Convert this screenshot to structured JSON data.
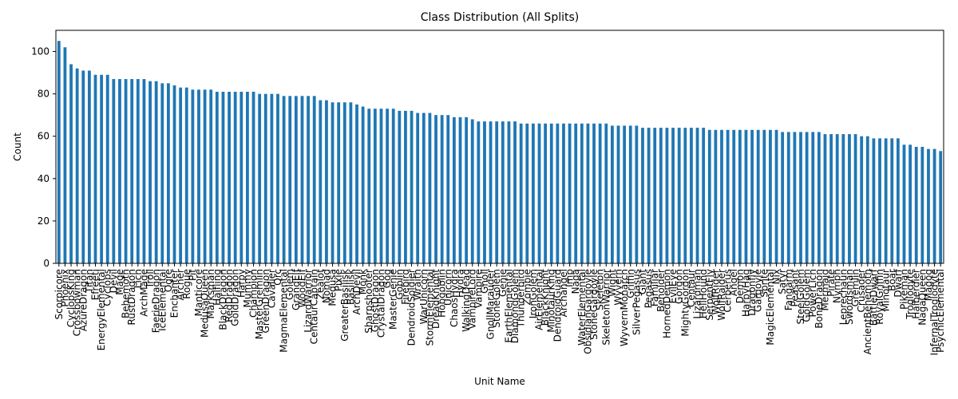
{
  "chart_data": {
    "type": "bar",
    "title": "Class Distribution (All Splits)",
    "x_label": "Unit Name",
    "y_label": "Count",
    "color": "#1f77b4",
    "categories": [
      "Scorpicore",
      "Phoenix",
      "CyclopsKing",
      "Crossbowman",
      "AzureDragon",
      "Titan",
      "Efreeti",
      "EnergyElemental",
      "Cyclops",
      "Devil",
      "Mage",
      "Behemoth",
      "RustDragon",
      "Lich",
      "ArchMage",
      "Troll",
      "FaerieDragon",
      "IceElemental",
      "Ogre",
      "Enchanter",
      "Archer",
      "Rogue",
      "Pit",
      "Manticore",
      "MedusaQueen",
      "Marksman",
      "Halfling",
      "BlackDragon",
      "RedDragon",
      "GoldDragon",
      "Harpy",
      "Mummy",
      "Champion",
      "MasterGremlin",
      "GreenDragon",
      "Cavalier",
      "Orc",
      "MagmaElemental",
      "Golem",
      "GrandElf",
      "WoodElf",
      "LizardWarrior",
      "CentaurCaptain",
      "Zealot",
      "Nomad",
      "Medusa",
      "Pixie",
      "GreaterBasilisk",
      "Basilisk",
      "ArchDevil",
      "Monk",
      "Sharpshooter",
      "GhostDragon",
      "CrystalDragon",
      "Gog",
      "MasterGenie",
      "Goblin",
      "Firebird",
      "DendroidSoldier",
      "Wraith",
      "WarUnicorn",
      "StormElemental",
      "DreadKnight",
      "Hobgoblin",
      "Unicorn",
      "ChaosHydra",
      "Hydra",
      "WalkingDead",
      "VampireLord",
      "Vampire",
      "Gnoll",
      "GnollMarauder",
      "StoneGolem",
      "Genie",
      "EarthElemental",
      "DiamondGolem",
      "Thunderbird",
      "Zombie",
      "IronGolem",
      "AirElemental",
      "BlackKnight",
      "MinotaurKing",
      "DendroidGuard",
      "Archangel",
      "Imp",
      "Naga",
      "WaterElemental",
      "ObsidianGargoyle",
      "StoneGargoyle",
      "Skeleton",
      "SkeletonWarrior",
      "Wight",
      "Wyvern",
      "WyvernMonarch",
      "Griffin",
      "SilverPegasus",
      "Giant",
      "Pegasus",
      "Familiar",
      "Beholder",
      "HornedDemon",
      "EvilEye",
      "Gorgon",
      "MightyGorgon",
      "Centaur",
      "Lizardman",
      "HellHound",
      "SerpentFly",
      "WolfRider",
      "WolfRaider",
      "Cerberus",
      "Angel",
      "Demon",
      "HarpyHag",
      "Dragonfly",
      "Gargoyle",
      "Sprite",
      "MagicElemental",
      "Nix",
      "Satyr",
      "Fangarm",
      "Peasant",
      "SteelGolem",
      "GoldGolem",
      "PowerLich",
      "BoneDragon",
      "Mermaid",
      "Pirate",
      "Nymph",
      "Leprechaun",
      "Swordsman",
      "Gremlin",
      "Crusader",
      "AncientBehemoth",
      "BattleDwarf",
      "RoyalGriffin",
      "Minotaur",
      "Boar",
      "Dwarf",
      "Pikeman",
      "Troglodyte",
      "Halberdier",
      "NagaQueen",
      "Magog",
      "InfernalTroglodyte",
      "PsychicElemental"
    ],
    "values": [
      105,
      102,
      94,
      92,
      91,
      91,
      89,
      89,
      89,
      87,
      87,
      87,
      87,
      87,
      87,
      86,
      86,
      85,
      85,
      84,
      83,
      83,
      82,
      82,
      82,
      82,
      81,
      81,
      81,
      81,
      81,
      81,
      81,
      80,
      80,
      80,
      80,
      79,
      79,
      79,
      79,
      79,
      79,
      77,
      77,
      76,
      76,
      76,
      76,
      75,
      74,
      73,
      73,
      73,
      73,
      73,
      72,
      72,
      72,
      71,
      71,
      71,
      70,
      70,
      70,
      69,
      69,
      69,
      68,
      67,
      67,
      67,
      67,
      67,
      67,
      67,
      66,
      66,
      66,
      66,
      66,
      66,
      66,
      66,
      66,
      66,
      66,
      66,
      66,
      66,
      66,
      65,
      65,
      65,
      65,
      65,
      64,
      64,
      64,
      64,
      64,
      64,
      64,
      64,
      64,
      64,
      64,
      63,
      63,
      63,
      63,
      63,
      63,
      63,
      63,
      63,
      63,
      63,
      63,
      62,
      62,
      62,
      62,
      62,
      62,
      62,
      61,
      61,
      61,
      61,
      61,
      61,
      60,
      60,
      59,
      59,
      59,
      59,
      59,
      56,
      56,
      55,
      55,
      54,
      54,
      53
    ],
    "ylim": [
      0,
      110
    ],
    "yticks": [
      0,
      20,
      40,
      60,
      80,
      100
    ],
    "grid": false
  }
}
